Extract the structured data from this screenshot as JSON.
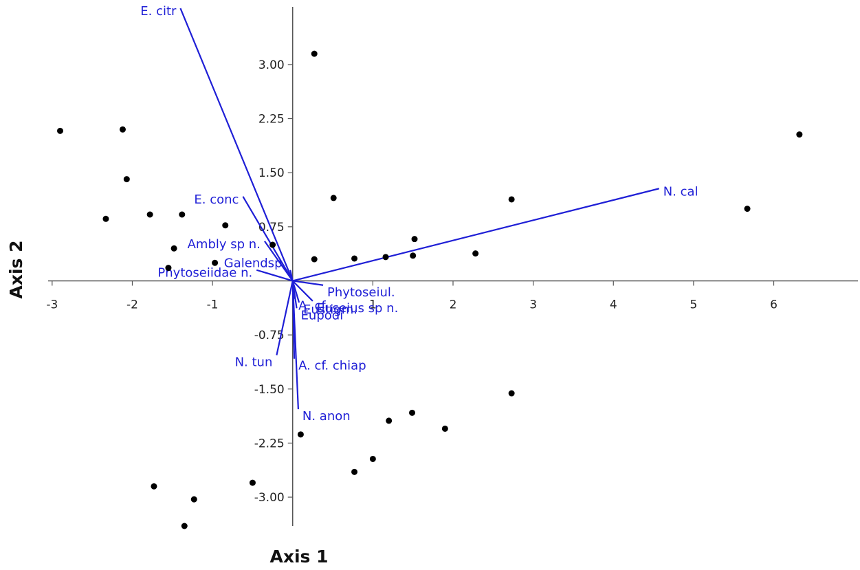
{
  "colors": {
    "vector": "#1f1fd6",
    "point": "#000000",
    "axis": "#555555"
  },
  "chart_data": {
    "type": "scatter",
    "xlabel": "Axis 1",
    "ylabel": "Axis 2",
    "xlim": [
      -3.05,
      7.05
    ],
    "ylim": [
      -3.4,
      3.8
    ],
    "x_ticks": [
      {
        "value": -3,
        "label": "-3"
      },
      {
        "value": -2,
        "label": "-2"
      },
      {
        "value": -1,
        "label": "-1"
      },
      {
        "value": 1,
        "label": "1"
      },
      {
        "value": 2,
        "label": "2"
      },
      {
        "value": 3,
        "label": "3"
      },
      {
        "value": 4,
        "label": "4"
      },
      {
        "value": 5,
        "label": "5"
      },
      {
        "value": 6,
        "label": "6"
      }
    ],
    "y_ticks": [
      {
        "value": 3.0,
        "label": "3.00"
      },
      {
        "value": 2.25,
        "label": "2.25"
      },
      {
        "value": 1.5,
        "label": "1.50"
      },
      {
        "value": 0.75,
        "label": "0.75"
      },
      {
        "value": -0.75,
        "label": "-0.75"
      },
      {
        "value": -1.5,
        "label": "-1.50"
      },
      {
        "value": -2.25,
        "label": "-2.25"
      },
      {
        "value": -3.0,
        "label": "-3.00"
      }
    ],
    "points": [
      {
        "x": -2.9,
        "y": 2.08
      },
      {
        "x": -2.12,
        "y": 2.1
      },
      {
        "x": -2.07,
        "y": 1.41
      },
      {
        "x": -2.33,
        "y": 0.86
      },
      {
        "x": -1.78,
        "y": 0.92
      },
      {
        "x": -1.38,
        "y": 0.92
      },
      {
        "x": -0.84,
        "y": 0.77
      },
      {
        "x": -1.48,
        "y": 0.45
      },
      {
        "x": -1.55,
        "y": 0.18
      },
      {
        "x": -0.97,
        "y": 0.25
      },
      {
        "x": -0.25,
        "y": 0.5
      },
      {
        "x": 0.27,
        "y": 3.15
      },
      {
        "x": 0.51,
        "y": 1.15
      },
      {
        "x": 0.27,
        "y": 0.3
      },
      {
        "x": 0.77,
        "y": 0.31
      },
      {
        "x": 1.16,
        "y": 0.33
      },
      {
        "x": 1.5,
        "y": 0.35
      },
      {
        "x": 1.52,
        "y": 0.58
      },
      {
        "x": 2.28,
        "y": 0.38
      },
      {
        "x": 2.73,
        "y": 1.13
      },
      {
        "x": 5.67,
        "y": 1.0
      },
      {
        "x": 6.32,
        "y": 2.03
      },
      {
        "x": 2.73,
        "y": -1.56
      },
      {
        "x": 1.49,
        "y": -1.83
      },
      {
        "x": 1.9,
        "y": -2.05
      },
      {
        "x": 1.2,
        "y": -1.94
      },
      {
        "x": 1.0,
        "y": -2.47
      },
      {
        "x": 0.77,
        "y": -2.65
      },
      {
        "x": 0.1,
        "y": -2.13
      },
      {
        "x": -0.5,
        "y": -2.8
      },
      {
        "x": -1.73,
        "y": -2.85
      },
      {
        "x": -1.23,
        "y": -3.03
      },
      {
        "x": -1.35,
        "y": -3.4
      }
    ],
    "vectors": [
      {
        "label": "E. citr",
        "x": -1.4,
        "y": 3.78
      },
      {
        "label": "N. cal",
        "x": 4.57,
        "y": 1.28
      },
      {
        "label": "E. conc",
        "x": -0.62,
        "y": 1.17
      },
      {
        "label": "Ambly sp n.",
        "x": -0.35,
        "y": 0.55
      },
      {
        "label": "Phytoseiidae n.",
        "x": -0.45,
        "y": 0.15
      },
      {
        "label": "Galendsp.",
        "x": -0.03,
        "y": 0.15
      },
      {
        "label": "Phytoseiul.",
        "x": 0.38,
        "y": -0.06
      },
      {
        "label": "A. cf. ...",
        "x": 0.02,
        "y": -0.25
      },
      {
        "label": "Eustigm.",
        "x": 0.08,
        "y": -0.3
      },
      {
        "label": "Euseius sp n.",
        "x": 0.25,
        "y": -0.28
      },
      {
        "label": "Eupodi",
        "x": 0.05,
        "y": -0.38
      },
      {
        "label": "N. tun",
        "x": -0.2,
        "y": -1.03
      },
      {
        "label": "A. cf. chiap",
        "x": 0.02,
        "y": -1.08
      },
      {
        "label": "N. anon",
        "x": 0.07,
        "y": -1.78
      }
    ]
  }
}
